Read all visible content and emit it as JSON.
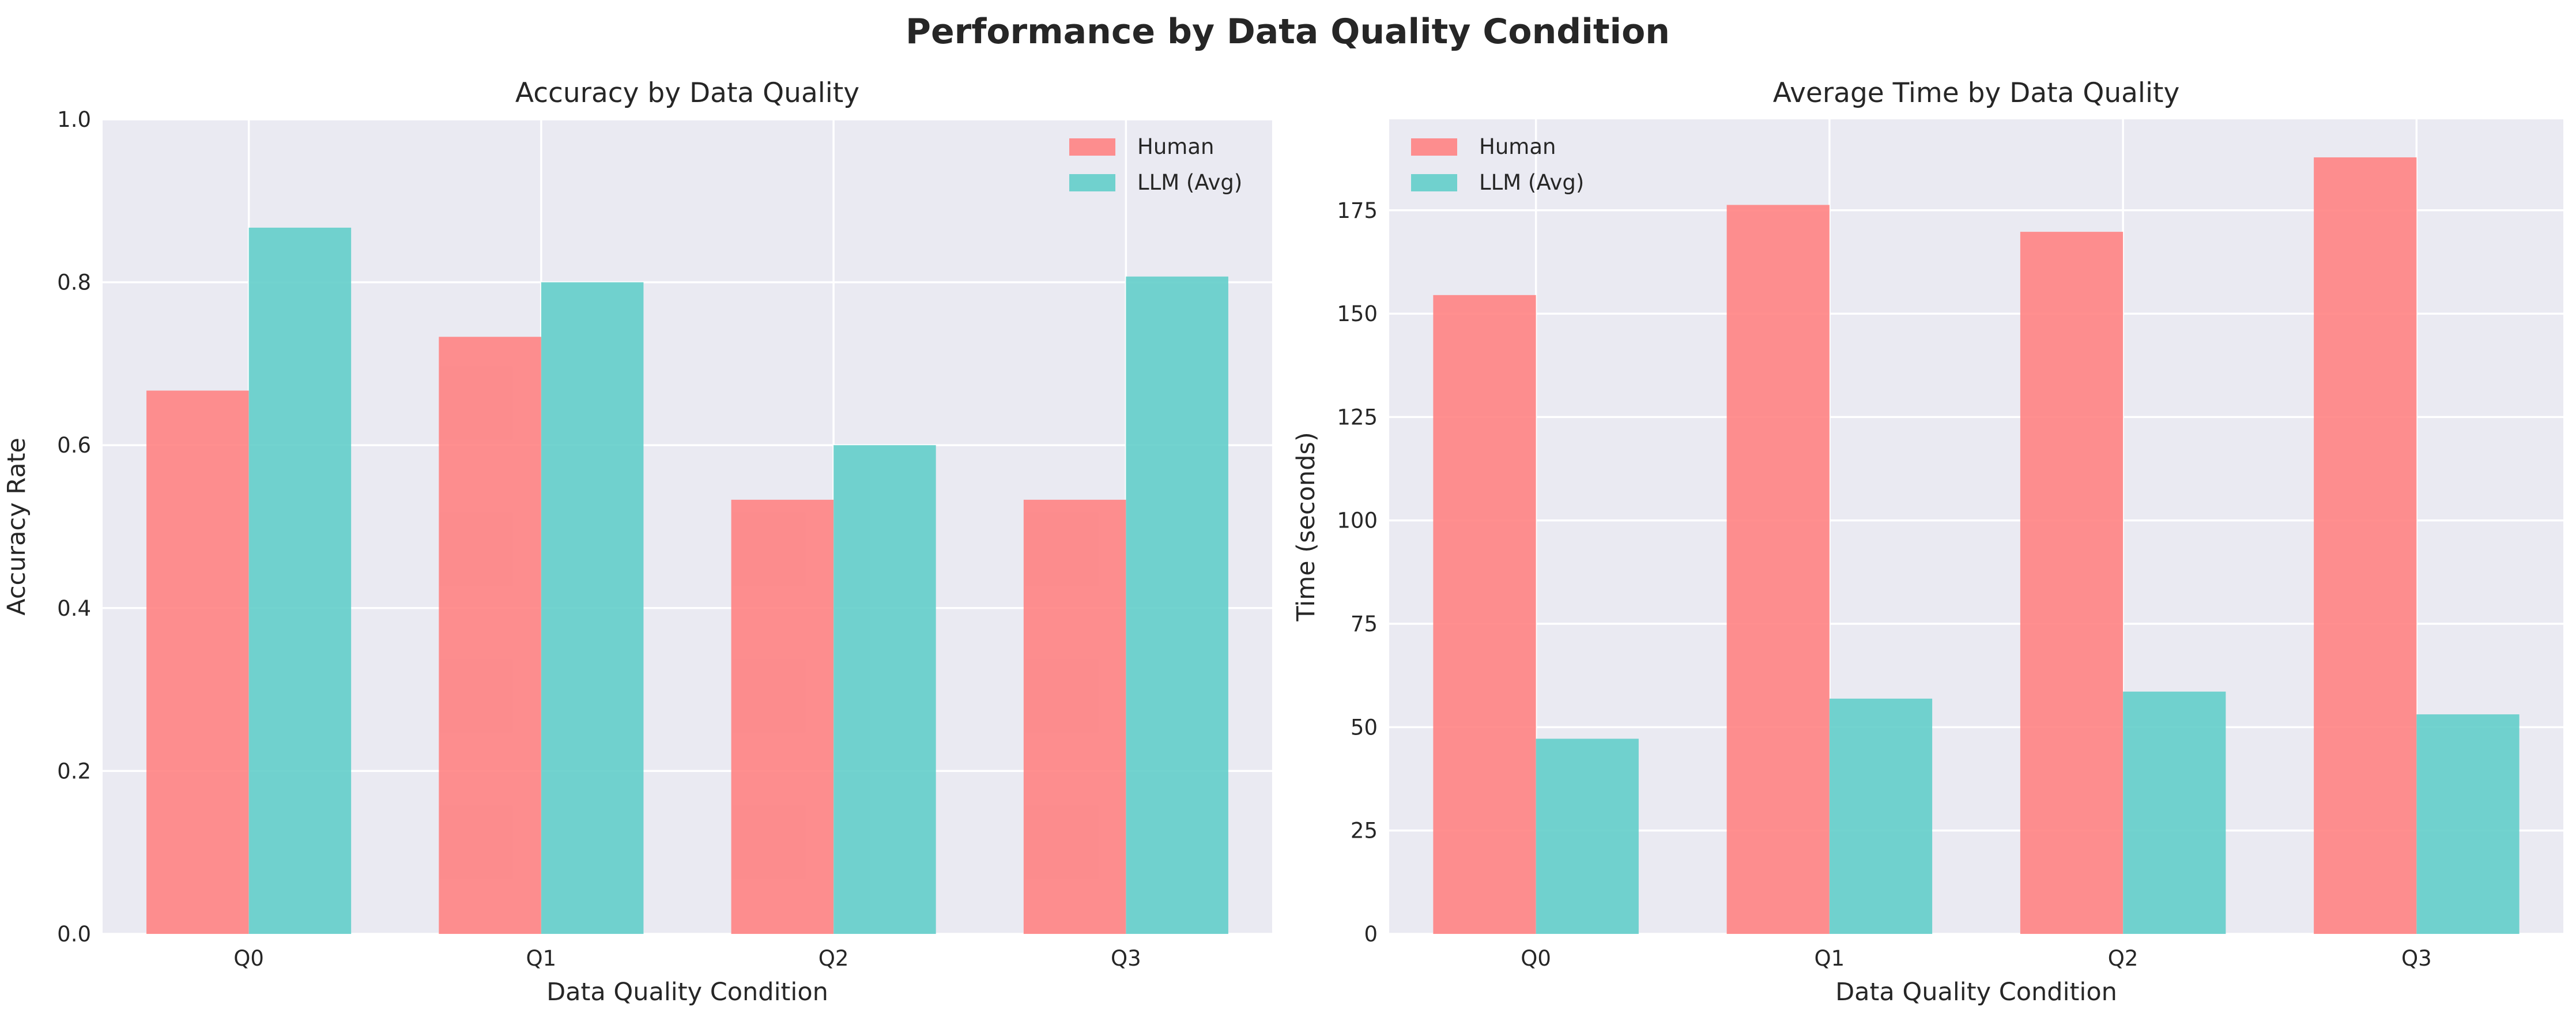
{
  "figure_title": "Performance by Data Quality Condition",
  "colors": {
    "human": "#ff7f7f",
    "llm": "#5ecdc8",
    "plot_bg": "#eaeaf2",
    "grid": "#ffffff",
    "text": "#262626"
  },
  "chart_data": [
    {
      "type": "bar",
      "title": "Accuracy by Data Quality",
      "xlabel": "Data Quality Condition",
      "ylabel": "Accuracy Rate",
      "categories": [
        "Q0",
        "Q1",
        "Q2",
        "Q3"
      ],
      "ylim": [
        0,
        1.0
      ],
      "yticks": [
        0.0,
        0.2,
        0.4,
        0.6,
        0.8,
        1.0
      ],
      "ytick_labels": [
        "0.0",
        "0.2",
        "0.4",
        "0.6",
        "0.8",
        "1.0"
      ],
      "grid": true,
      "legend_position": "top-right",
      "series": [
        {
          "name": "Human",
          "values": [
            0.667,
            0.733,
            0.533,
            0.533
          ]
        },
        {
          "name": "LLM (Avg)",
          "values": [
            0.867,
            0.8,
            0.6,
            0.807
          ]
        }
      ]
    },
    {
      "type": "bar",
      "title": "Average Time by Data Quality",
      "xlabel": "Data Quality Condition",
      "ylabel": "Time (seconds)",
      "categories": [
        "Q0",
        "Q1",
        "Q2",
        "Q3"
      ],
      "ylim": [
        0,
        197
      ],
      "yticks": [
        0,
        25,
        50,
        75,
        100,
        125,
        150,
        175
      ],
      "ytick_labels": [
        "0",
        "25",
        "50",
        "75",
        "100",
        "125",
        "150",
        "175"
      ],
      "grid": true,
      "legend_position": "top-left",
      "series": [
        {
          "name": "Human",
          "values": [
            154.5,
            176.3,
            169.8,
            187.8
          ]
        },
        {
          "name": "LLM (Avg)",
          "values": [
            47.2,
            56.9,
            58.6,
            53.1
          ]
        }
      ]
    }
  ]
}
